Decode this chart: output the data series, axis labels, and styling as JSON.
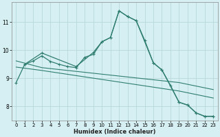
{
  "xlabel": "Humidex (Indice chaleur)",
  "bg_color": "#d6eff2",
  "grid_color": "#b8d8dc",
  "line_color": "#2e7d6e",
  "xlim": [
    -0.5,
    23.5
  ],
  "ylim": [
    7.5,
    11.7
  ],
  "xticks": [
    0,
    1,
    2,
    3,
    4,
    5,
    6,
    7,
    8,
    9,
    10,
    11,
    12,
    13,
    14,
    15,
    16,
    17,
    18,
    19,
    20,
    21,
    22,
    23
  ],
  "yticks": [
    8,
    9,
    10,
    11
  ],
  "line1": {
    "x": [
      0,
      1,
      2,
      3,
      4,
      5,
      6,
      7,
      8,
      9,
      10,
      11,
      12,
      13,
      14,
      15,
      16,
      17,
      18,
      19,
      20,
      21,
      22,
      23
    ],
    "y": [
      8.85,
      9.5,
      9.62,
      9.8,
      9.6,
      9.5,
      9.42,
      9.38,
      9.75,
      9.85,
      10.3,
      10.45,
      11.4,
      11.2,
      11.05,
      10.35,
      9.55,
      9.3,
      8.75,
      8.15,
      8.05,
      7.77,
      7.65,
      7.65
    ]
  },
  "line2": {
    "x": [
      0,
      3,
      19,
      23
    ],
    "y": [
      9.62,
      9.38,
      8.85,
      8.6
    ]
  },
  "line3": {
    "x": [
      0,
      3,
      19,
      23
    ],
    "y": [
      9.4,
      9.28,
      8.55,
      8.3
    ]
  },
  "line4": {
    "comment": "Second curve with markers - peaks at 12, goes via 3,7,9,12,14,17,19,20,21,22,23",
    "x": [
      1,
      3,
      7,
      9,
      10,
      11,
      12,
      13,
      14,
      16,
      17,
      19,
      20,
      21,
      22,
      23
    ],
    "y": [
      9.5,
      9.9,
      9.42,
      9.92,
      10.3,
      10.45,
      11.4,
      11.2,
      11.05,
      9.55,
      9.3,
      8.15,
      8.05,
      7.77,
      7.65,
      7.65
    ]
  }
}
